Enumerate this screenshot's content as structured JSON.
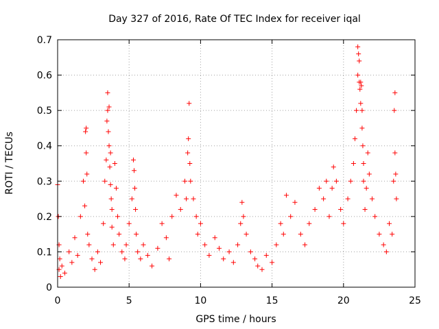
{
  "chart_data": {
    "type": "scatter",
    "title": "Day 327 of 2016, Rate Of TEC Index for receiver iqal",
    "xlabel": "GPS time / hours",
    "ylabel": "ROTI / TECUs",
    "xlim": [
      0,
      25
    ],
    "ylim": [
      0,
      0.7
    ],
    "xticks": [
      0,
      5,
      10,
      15,
      20,
      25
    ],
    "yticks": [
      0,
      0.1,
      0.2,
      0.3,
      0.4,
      0.5,
      0.6,
      0.7
    ],
    "xtick_labels": [
      "0",
      "5",
      "10",
      "15",
      "20",
      "25"
    ],
    "ytick_labels": [
      "0",
      "0.1",
      "0.2",
      "0.3",
      "0.4",
      "0.5",
      "0.6",
      "0.7"
    ],
    "grid": true,
    "marker": "plus",
    "color": "#ff0000",
    "series": [
      {
        "x": [
          0.0,
          0.05,
          0.1,
          0.1,
          0.15,
          0.2,
          0.3,
          0.5,
          0.8,
          1.0,
          1.2,
          1.4,
          1.6,
          1.8,
          1.9,
          1.95,
          2.0,
          2.0,
          2.05,
          2.1,
          2.2,
          2.4,
          2.6,
          2.8,
          3.0,
          3.2,
          3.3,
          3.4,
          3.45,
          3.5,
          3.5,
          3.55,
          3.6,
          3.6,
          3.65,
          3.7,
          3.7,
          3.75,
          3.8,
          3.8,
          3.9,
          4.0,
          4.1,
          4.2,
          4.3,
          4.5,
          4.7,
          4.8,
          5.0,
          5.2,
          5.3,
          5.35,
          5.4,
          5.45,
          5.5,
          5.6,
          5.8,
          6.0,
          6.3,
          6.6,
          7.0,
          7.3,
          7.6,
          7.8,
          8.0,
          8.3,
          8.6,
          8.9,
          9.0,
          9.1,
          9.15,
          9.2,
          9.25,
          9.3,
          9.5,
          9.7,
          9.8,
          10.0,
          10.3,
          10.6,
          11.0,
          11.3,
          11.6,
          12.0,
          12.3,
          12.6,
          12.8,
          12.9,
          13.0,
          13.2,
          13.5,
          13.8,
          14.0,
          14.3,
          14.6,
          15.0,
          15.3,
          15.6,
          15.8,
          16.0,
          16.3,
          16.6,
          17.0,
          17.3,
          17.6,
          18.0,
          18.3,
          18.6,
          18.8,
          19.0,
          19.2,
          19.3,
          19.5,
          19.8,
          20.0,
          20.3,
          20.5,
          20.7,
          20.8,
          20.9,
          21.0,
          21.0,
          21.05,
          21.1,
          21.1,
          21.15,
          21.2,
          21.2,
          21.25,
          21.3,
          21.3,
          21.35,
          21.4,
          21.4,
          21.5,
          21.6,
          21.7,
          21.8,
          22.0,
          22.2,
          22.5,
          22.8,
          23.0,
          23.2,
          23.4,
          23.5,
          23.55,
          23.6,
          23.6,
          23.65,
          23.7
        ],
        "y": [
          0.29,
          0.2,
          0.12,
          0.05,
          0.08,
          0.03,
          0.06,
          0.04,
          0.1,
          0.07,
          0.14,
          0.09,
          0.2,
          0.3,
          0.23,
          0.44,
          0.45,
          0.38,
          0.32,
          0.15,
          0.12,
          0.08,
          0.05,
          0.1,
          0.07,
          0.18,
          0.3,
          0.36,
          0.47,
          0.55,
          0.5,
          0.44,
          0.51,
          0.4,
          0.34,
          0.38,
          0.29,
          0.25,
          0.22,
          0.17,
          0.12,
          0.35,
          0.28,
          0.2,
          0.15,
          0.1,
          0.08,
          0.12,
          0.18,
          0.25,
          0.36,
          0.33,
          0.28,
          0.22,
          0.15,
          0.1,
          0.08,
          0.12,
          0.09,
          0.06,
          0.11,
          0.18,
          0.14,
          0.08,
          0.2,
          0.26,
          0.22,
          0.3,
          0.25,
          0.38,
          0.42,
          0.52,
          0.35,
          0.3,
          0.25,
          0.2,
          0.15,
          0.18,
          0.12,
          0.09,
          0.14,
          0.11,
          0.08,
          0.1,
          0.07,
          0.12,
          0.18,
          0.24,
          0.2,
          0.15,
          0.1,
          0.08,
          0.06,
          0.05,
          0.09,
          0.07,
          0.12,
          0.18,
          0.15,
          0.26,
          0.2,
          0.24,
          0.15,
          0.12,
          0.18,
          0.22,
          0.28,
          0.25,
          0.3,
          0.2,
          0.28,
          0.34,
          0.3,
          0.22,
          0.18,
          0.25,
          0.3,
          0.35,
          0.42,
          0.5,
          0.6,
          0.68,
          0.66,
          0.64,
          0.58,
          0.56,
          0.52,
          0.58,
          0.57,
          0.5,
          0.45,
          0.4,
          0.35,
          0.3,
          0.22,
          0.28,
          0.38,
          0.32,
          0.25,
          0.2,
          0.15,
          0.12,
          0.1,
          0.18,
          0.15,
          0.3,
          0.5,
          0.55,
          0.38,
          0.32,
          0.25
        ]
      }
    ]
  }
}
